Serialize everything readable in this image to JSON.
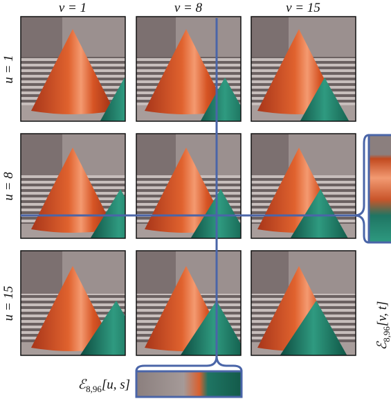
{
  "figure": {
    "column_labels": [
      "v = 1",
      "v = 8",
      "v = 15"
    ],
    "row_labels": [
      "u = 1",
      "u = 8",
      "u = 15"
    ],
    "epi_horizontal": {
      "symbol": "ℰ",
      "subscript": "8,96",
      "args": "[u, s]"
    },
    "epi_vertical": {
      "symbol": "ℰ",
      "subscript": "8,96",
      "args": "[v, t]"
    }
  }
}
